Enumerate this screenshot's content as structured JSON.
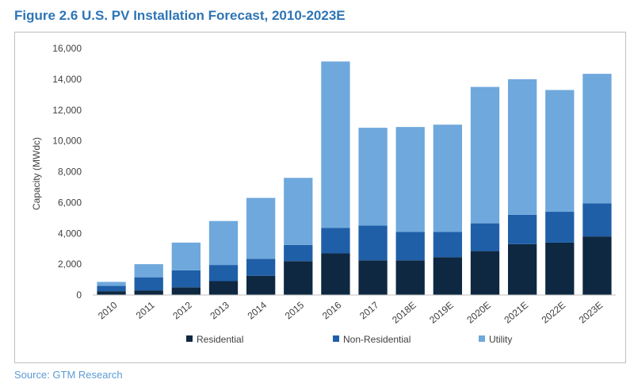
{
  "figure_title": "Figure 2.6 U.S. PV Installation Forecast, 2010-2023E",
  "source_note": "Source: GTM Research",
  "colors": {
    "title": "#2E75B6",
    "residential": "#0E2841",
    "non_residential": "#1F5FA8",
    "utility": "#6FA8DC",
    "source": "#5B9BD5"
  },
  "chart_data": {
    "type": "bar",
    "stacked": true,
    "title": "Figure 2.6 U.S. PV Installation Forecast, 2010-2023E",
    "xlabel": "",
    "ylabel": "Capacity (MWdc)",
    "ylim": [
      0,
      16000
    ],
    "y_ticks": [
      0,
      2000,
      4000,
      6000,
      8000,
      10000,
      12000,
      14000,
      16000
    ],
    "y_tick_labels": [
      "0",
      "2,000",
      "4,000",
      "6,000",
      "8,000",
      "10,000",
      "12,000",
      "14,000",
      "16,000"
    ],
    "grid": false,
    "legend_position": "bottom",
    "categories": [
      "2010",
      "2011",
      "2012",
      "2013",
      "2014",
      "2015",
      "2016",
      "2017",
      "2018E",
      "2019E",
      "2020E",
      "2021E",
      "2022E",
      "2023E"
    ],
    "series": [
      {
        "name": "Residential",
        "values": [
          250,
          300,
          500,
          900,
          1250,
          2200,
          2700,
          2250,
          2250,
          2450,
          2850,
          3300,
          3400,
          3800
        ]
      },
      {
        "name": "Non-Residential",
        "values": [
          350,
          850,
          1100,
          1050,
          1100,
          1050,
          1650,
          2250,
          1850,
          1650,
          1800,
          1900,
          2000,
          2150
        ]
      },
      {
        "name": "Utility",
        "values": [
          250,
          850,
          1800,
          2850,
          3950,
          4350,
          10800,
          6350,
          6800,
          6950,
          8850,
          8800,
          7900,
          8400
        ]
      }
    ]
  }
}
